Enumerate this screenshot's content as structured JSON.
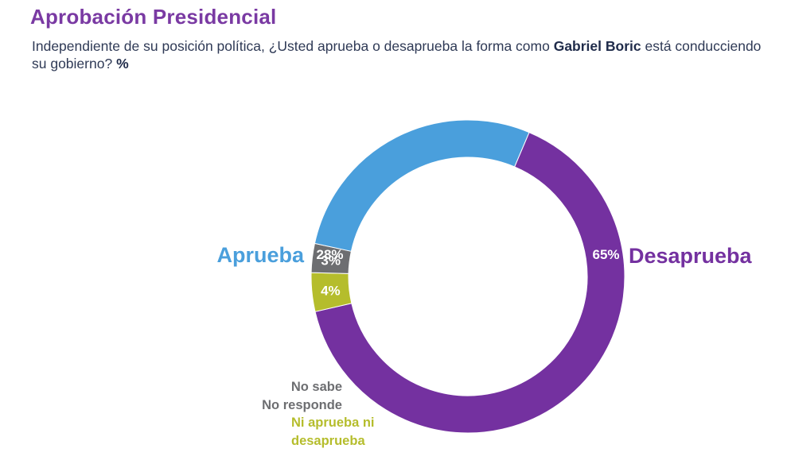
{
  "header": {
    "title": "Aprobación Presidencial",
    "question_prefix": "Independiente de su posición política, ¿Usted aprueba o desaprueba la forma como ",
    "question_name": "Gabriel Boric",
    "question_suffix": " está conducciendo su gobierno? ",
    "question_unit": "%"
  },
  "chart_data": {
    "type": "pie",
    "subtype": "donut",
    "title": "Aprobación Presidencial",
    "unit": "%",
    "slices": [
      {
        "label": "Desaprueba",
        "value": 65,
        "value_label": "65%",
        "color": "#7431a0"
      },
      {
        "label": "Ni aprueba ni desaprueba",
        "label_lines": [
          "Ni aprueba ni",
          "desaprueba"
        ],
        "value": 4,
        "value_label": "4%",
        "color": "#b5bd2c"
      },
      {
        "label": "No sabe No responde",
        "label_lines": [
          "No sabe",
          "No responde"
        ],
        "value": 3,
        "value_label": "3%",
        "color": "#6d6e71"
      },
      {
        "label": "Aprueba",
        "value": 28,
        "value_label": "28%",
        "color": "#4a9fdc"
      }
    ],
    "start_angle_deg": 23,
    "direction": "clockwise"
  }
}
